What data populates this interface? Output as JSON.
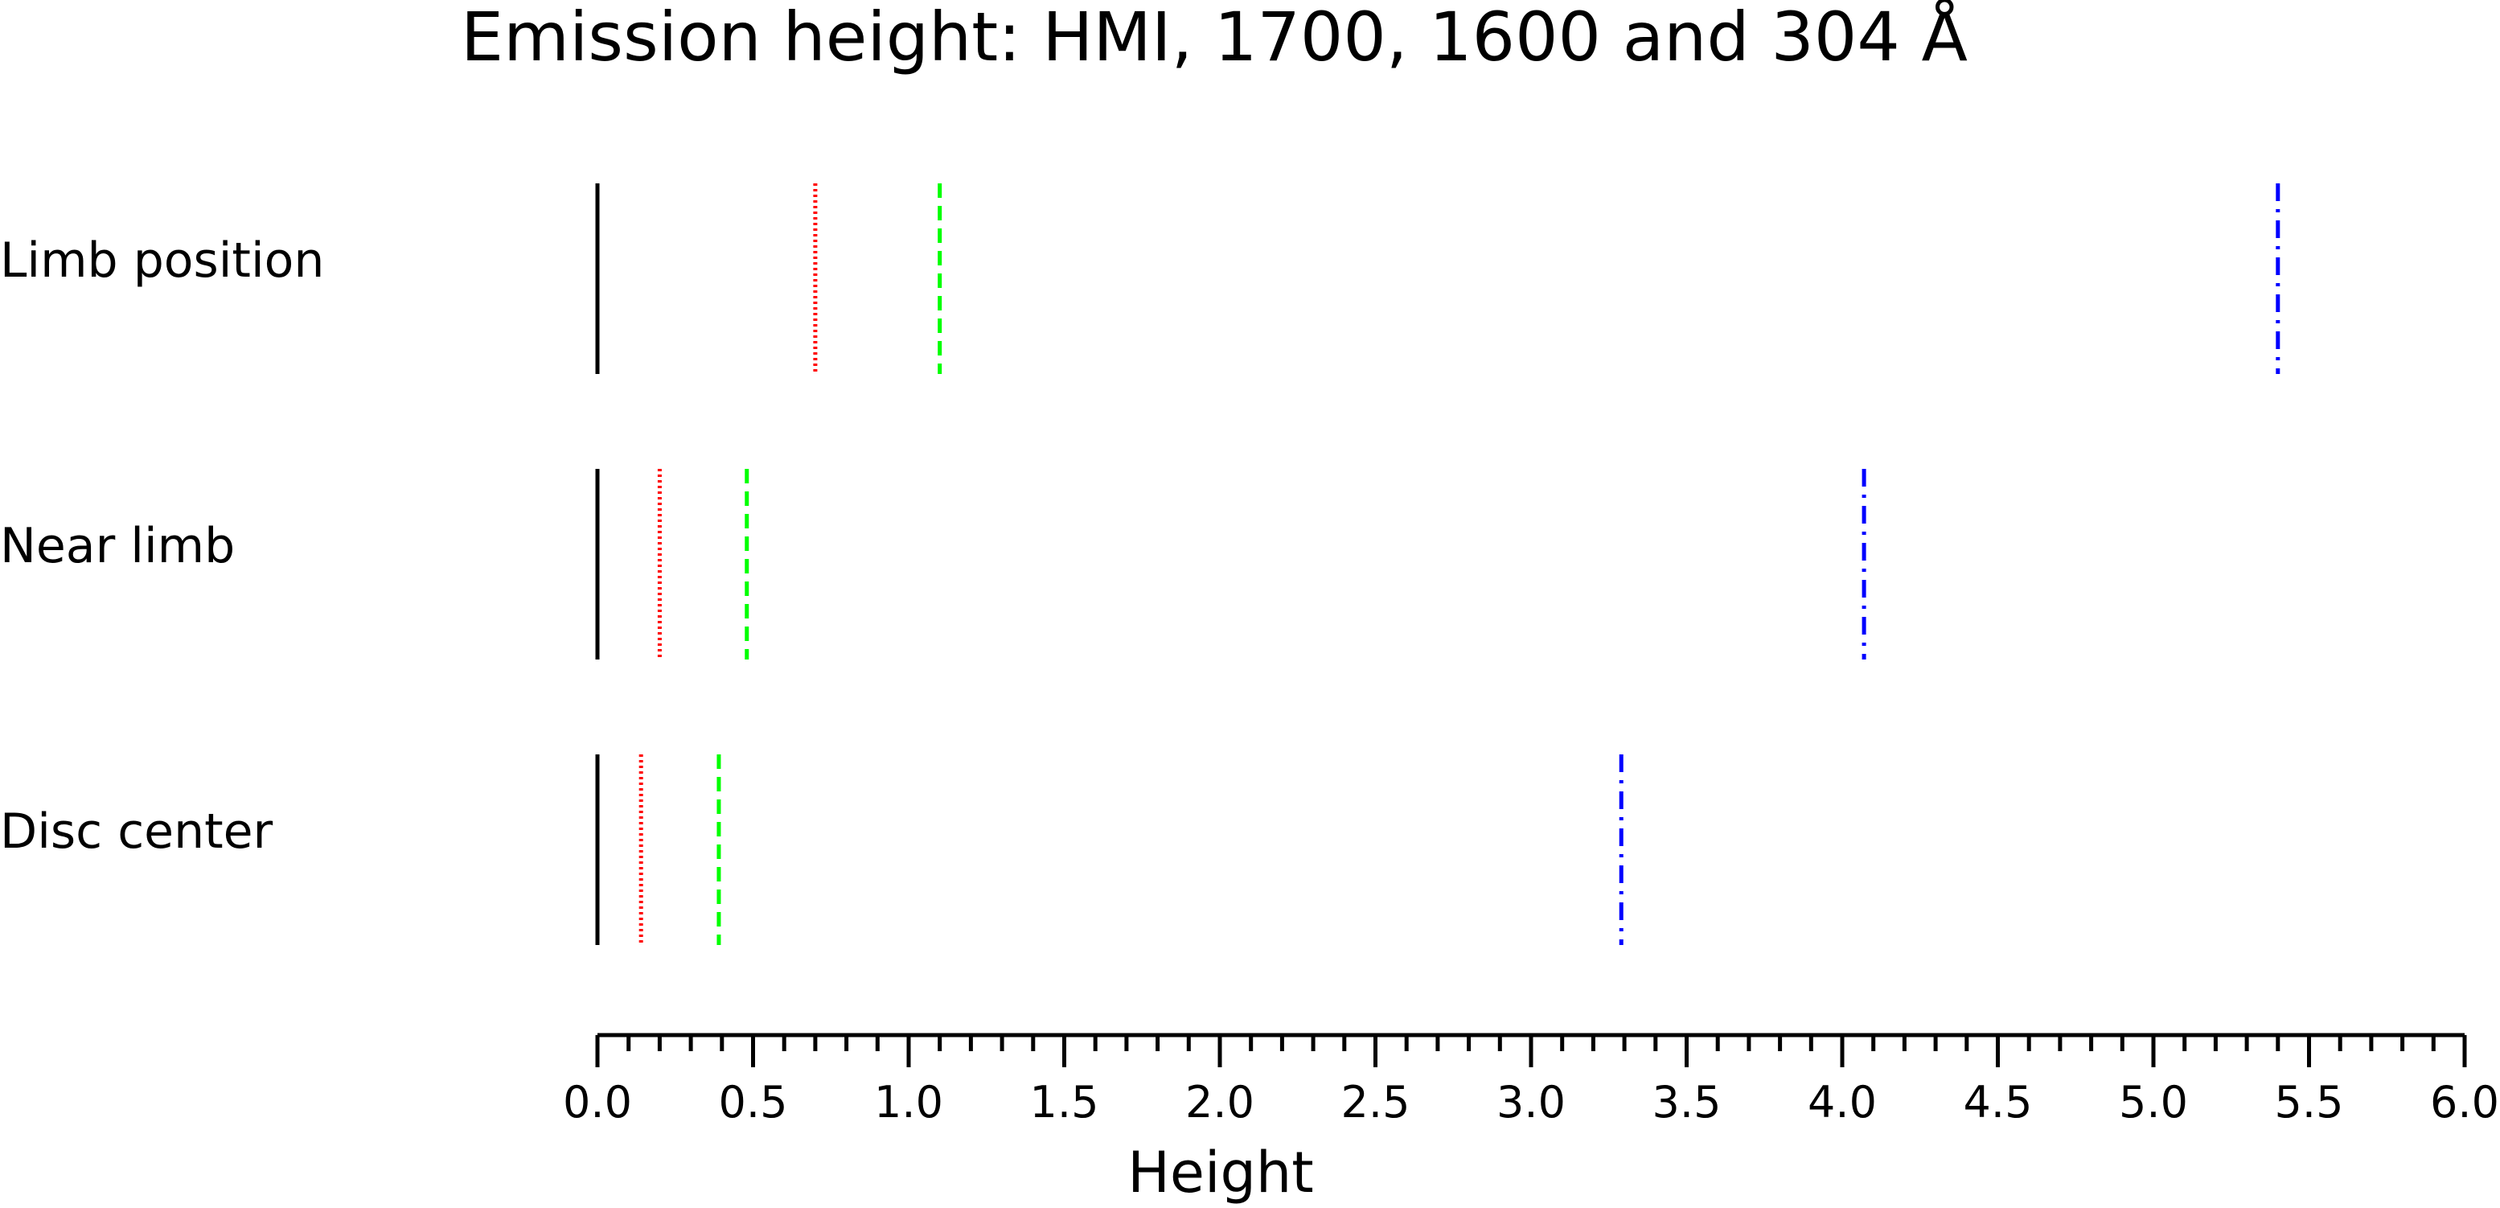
{
  "chart_data": {
    "type": "line",
    "title": "Emission height: HMI, 1700, 1600 and 304 Å",
    "xlabel": "Height",
    "ylabel": "",
    "xlim": [
      0,
      6
    ],
    "x_major_ticks": [
      0.0,
      0.5,
      1.0,
      1.5,
      2.0,
      2.5,
      3.0,
      3.5,
      4.0,
      4.5,
      5.0,
      5.5,
      6.0
    ],
    "x_tick_labels": [
      "0.0",
      "0.5",
      "1.0",
      "1.5",
      "2.0",
      "2.5",
      "3.0",
      "3.5",
      "4.0",
      "4.5",
      "5.0",
      "5.5",
      "6.0"
    ],
    "x_minor_tick_step": 0.1,
    "grid": false,
    "legend": "none",
    "categories": [
      "Limb position",
      "Near limb",
      "Disc center"
    ],
    "series": [
      {
        "color": "#000000",
        "line_style": "solid",
        "values": [
          0.0,
          0.0,
          0.0
        ]
      },
      {
        "color": "#ff0000",
        "line_style": "dotted",
        "values": [
          0.7,
          0.2,
          0.14
        ]
      },
      {
        "color": "#00ff00",
        "line_style": "dashed",
        "values": [
          1.1,
          0.48,
          0.39
        ]
      },
      {
        "color": "#0000ff",
        "line_style": "dashdot",
        "values": [
          5.4,
          4.07,
          3.29
        ]
      }
    ]
  }
}
